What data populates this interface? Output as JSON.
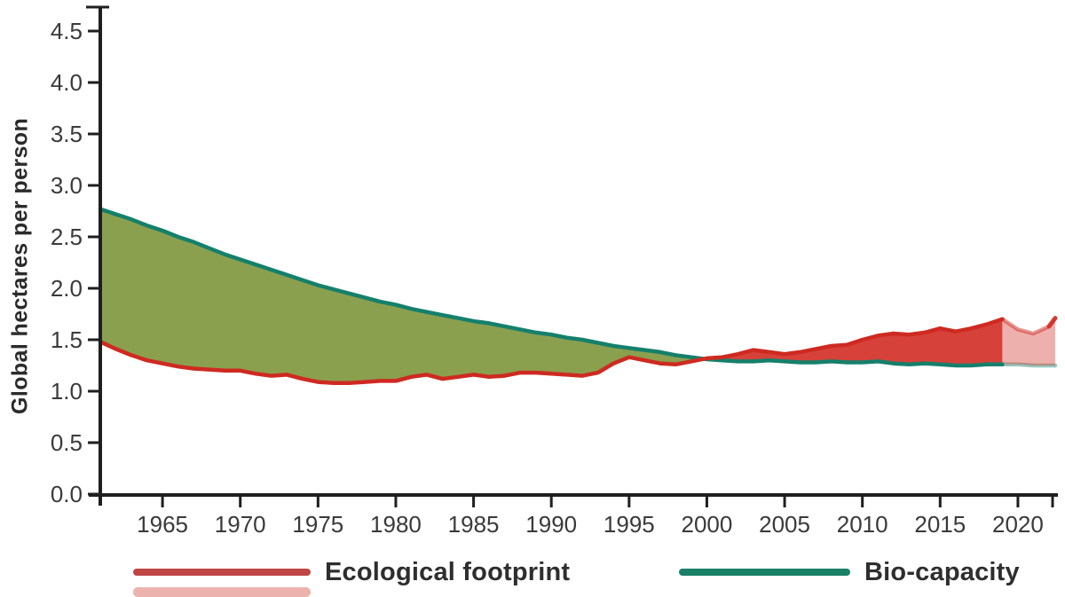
{
  "figure": {
    "background": "#ffffff",
    "y_axis_label": "Global hectares per person",
    "axis_color": "#1f1f1f",
    "tick_label_color": "#3a3a3a",
    "legend": [
      {
        "label": "Ecological footprint",
        "color": "#c04545"
      },
      {
        "label": "Bio-capacity",
        "color": "#1a8068"
      }
    ]
  },
  "chart_data": {
    "type": "area",
    "title": "",
    "xlabel": "",
    "ylabel": "Global hectares per person",
    "grid": false,
    "legend_position": "bottom",
    "xlim": [
      1961,
      2022.4
    ],
    "ylim": [
      0,
      4.75
    ],
    "x_tick_labels": [
      "1965",
      "1970",
      "1975",
      "1980",
      "1985",
      "1990",
      "1995",
      "2000",
      "2005",
      "2010",
      "2015",
      "2020"
    ],
    "y_tick_labels": [
      "0.0",
      "0.5",
      "1.0",
      "1.5",
      "2.0",
      "2.5",
      "3.0",
      "3.5",
      "4.0",
      "4.5"
    ],
    "estimate_from": 2019,
    "x": [
      1961,
      1962,
      1963,
      1964,
      1965,
      1966,
      1967,
      1968,
      1969,
      1970,
      1971,
      1972,
      1973,
      1974,
      1975,
      1976,
      1977,
      1978,
      1979,
      1980,
      1981,
      1982,
      1983,
      1984,
      1985,
      1986,
      1987,
      1988,
      1989,
      1990,
      1991,
      1992,
      1993,
      1994,
      1995,
      1996,
      1997,
      1998,
      1999,
      2000,
      2001,
      2002,
      2003,
      2004,
      2005,
      2006,
      2007,
      2008,
      2009,
      2010,
      2011,
      2012,
      2013,
      2014,
      2015,
      2016,
      2017,
      2018,
      2019,
      2020,
      2021,
      2022,
      2022.4
    ],
    "series": [
      {
        "name": "Ecological footprint",
        "color": "#ce2a21",
        "values": [
          1.48,
          1.41,
          1.35,
          1.3,
          1.27,
          1.24,
          1.22,
          1.21,
          1.2,
          1.2,
          1.17,
          1.15,
          1.16,
          1.12,
          1.09,
          1.08,
          1.08,
          1.09,
          1.1,
          1.1,
          1.14,
          1.16,
          1.12,
          1.14,
          1.16,
          1.14,
          1.15,
          1.18,
          1.18,
          1.17,
          1.16,
          1.15,
          1.18,
          1.27,
          1.33,
          1.3,
          1.27,
          1.26,
          1.29,
          1.32,
          1.33,
          1.36,
          1.4,
          1.38,
          1.36,
          1.38,
          1.41,
          1.44,
          1.45,
          1.5,
          1.54,
          1.56,
          1.55,
          1.57,
          1.61,
          1.58,
          1.61,
          1.65,
          1.7,
          1.6,
          1.56,
          1.63,
          1.71
        ]
      },
      {
        "name": "Bio-capacity",
        "color": "#15806b",
        "values": [
          2.77,
          2.72,
          2.67,
          2.61,
          2.56,
          2.5,
          2.45,
          2.39,
          2.33,
          2.28,
          2.23,
          2.18,
          2.13,
          2.08,
          2.03,
          1.99,
          1.95,
          1.91,
          1.87,
          1.84,
          1.8,
          1.77,
          1.74,
          1.71,
          1.68,
          1.66,
          1.63,
          1.6,
          1.57,
          1.55,
          1.52,
          1.5,
          1.47,
          1.44,
          1.42,
          1.4,
          1.38,
          1.35,
          1.33,
          1.31,
          1.3,
          1.29,
          1.29,
          1.3,
          1.29,
          1.28,
          1.28,
          1.29,
          1.28,
          1.28,
          1.29,
          1.27,
          1.26,
          1.27,
          1.26,
          1.25,
          1.25,
          1.26,
          1.26,
          1.26,
          1.25,
          1.25,
          1.25
        ]
      }
    ],
    "fill_between": {
      "surplus_color": "#8ba04e",
      "deficit_color": "#d6423a",
      "projected_fill_opacity": 0.42,
      "projected_line_opacity": 0.5
    }
  }
}
